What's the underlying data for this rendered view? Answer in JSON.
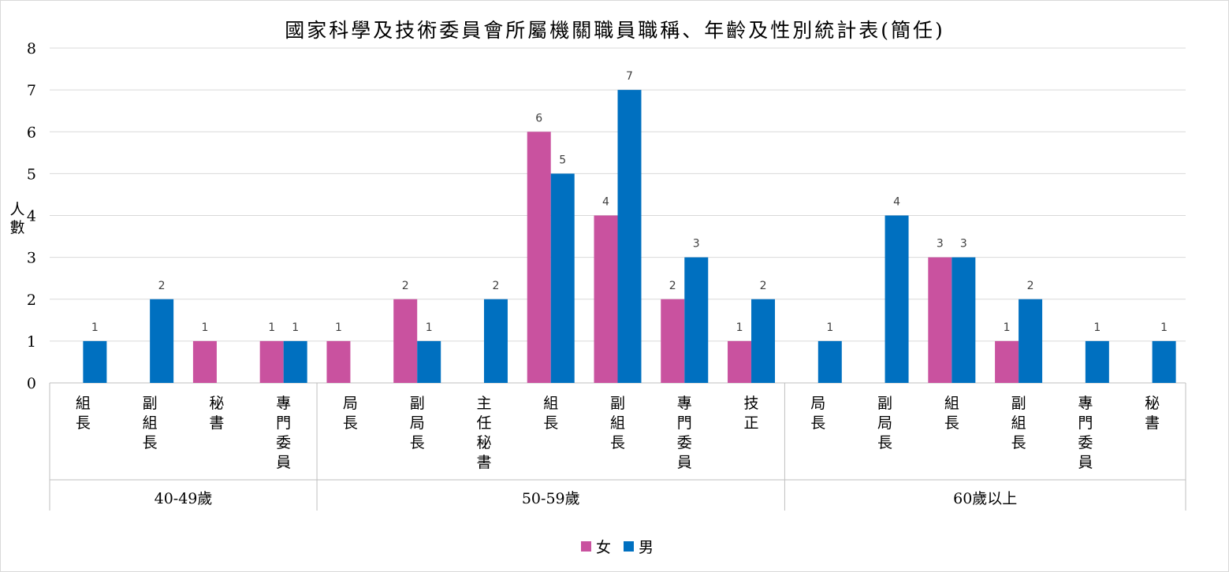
{
  "chart_data": {
    "type": "bar",
    "title": "國家科學及技術委員會所屬機關職員職稱、年齡及性別統計表(簡任)",
    "ylabel": "人數",
    "ylim": [
      0,
      8
    ],
    "yticks": [
      0,
      1,
      2,
      3,
      4,
      5,
      6,
      7,
      8
    ],
    "grid": true,
    "legend_position": "bottom",
    "groups": [
      {
        "label": "40-49歲",
        "categories": [
          "組長",
          "副組長",
          "秘書",
          "專門委員"
        ]
      },
      {
        "label": "50-59歲",
        "categories": [
          "局長",
          "副局長",
          "主任秘書",
          "組長",
          "副組長",
          "專門委員",
          "技正"
        ]
      },
      {
        "label": "60歲以上",
        "categories": [
          "局長",
          "副局長",
          "組長",
          "副組長",
          "專門委員",
          "秘書"
        ]
      }
    ],
    "categories": [
      "組長",
      "副組長",
      "秘書",
      "專門委員",
      "局長",
      "副局長",
      "主任秘書",
      "組長",
      "副組長",
      "專門委員",
      "技正",
      "局長",
      "副局長",
      "組長",
      "副組長",
      "專門委員",
      "秘書"
    ],
    "series": [
      {
        "name": "女",
        "color": "#c9529f",
        "values": [
          null,
          null,
          1,
          1,
          1,
          2,
          null,
          6,
          4,
          2,
          1,
          null,
          null,
          3,
          1,
          null,
          null
        ]
      },
      {
        "name": "男",
        "color": "#0070c0",
        "values": [
          1,
          2,
          null,
          1,
          null,
          1,
          2,
          5,
          7,
          3,
          2,
          1,
          4,
          3,
          2,
          1,
          1
        ]
      }
    ]
  }
}
